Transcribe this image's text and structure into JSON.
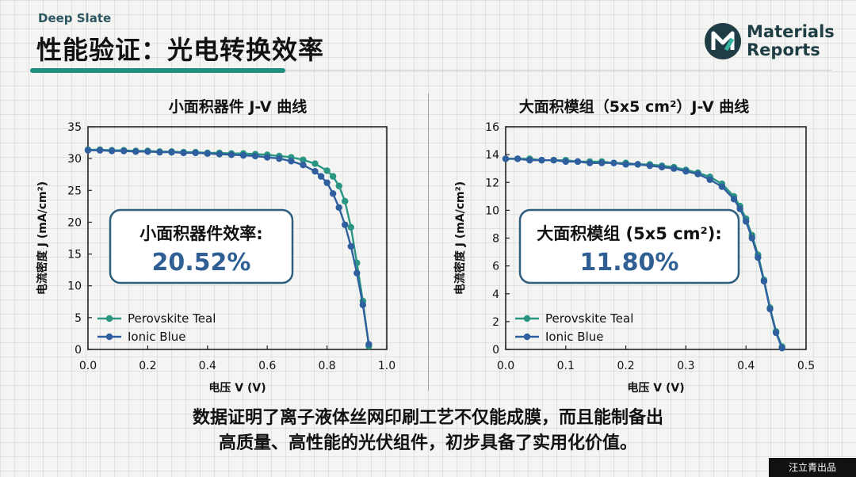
{
  "header": {
    "brand": "Deep Slate",
    "title": "性能验证：光电转换效率",
    "logo_line1": "Materials",
    "logo_line2": "Reports"
  },
  "caption": {
    "line1": "数据证明了离子液体丝网印刷工艺不仅能成膜，而且能制备出",
    "line2": "高质量、高性能的光伏组件，初步具备了实用化价值。"
  },
  "watermark": "汪立青出品",
  "colors": {
    "teal": "#2a9582",
    "blue": "#2f5f9e",
    "accent": "#1e8f80",
    "box_border": "#2f5e7e",
    "value_text": "#2f5f93"
  },
  "chart_data": [
    {
      "type": "line",
      "title": "小面积器件 J-V 曲线",
      "xlabel": "电压 V (V)",
      "ylabel": "电流密度 J (mA/cm²)",
      "xlim": [
        0.0,
        1.0
      ],
      "ylim": [
        0,
        35
      ],
      "xticks": [
        "0.0",
        "0.2",
        "0.4",
        "0.6",
        "0.8",
        "1.0"
      ],
      "yticks": [
        "0",
        "5",
        "10",
        "15",
        "20",
        "25",
        "30",
        "35"
      ],
      "grid": false,
      "legend": "bottom-left",
      "annotation": {
        "label": "小面积器件效率:",
        "value": "20.52%"
      },
      "series": [
        {
          "name": "Perovskite Teal",
          "color": "#2a9582",
          "x": [
            0.0,
            0.04,
            0.08,
            0.12,
            0.16,
            0.2,
            0.24,
            0.28,
            0.32,
            0.36,
            0.4,
            0.44,
            0.48,
            0.52,
            0.56,
            0.6,
            0.64,
            0.68,
            0.72,
            0.76,
            0.8,
            0.82,
            0.84,
            0.86,
            0.88,
            0.9,
            0.92,
            0.94
          ],
          "y": [
            31.4,
            31.4,
            31.3,
            31.3,
            31.2,
            31.2,
            31.1,
            31.1,
            31.0,
            31.0,
            30.9,
            30.9,
            30.8,
            30.8,
            30.7,
            30.6,
            30.4,
            30.2,
            29.8,
            29.2,
            28.1,
            27.2,
            25.7,
            23.3,
            19.2,
            13.6,
            7.6,
            0.5
          ]
        },
        {
          "name": "Ionic Blue",
          "color": "#2f5f9e",
          "x": [
            0.0,
            0.04,
            0.08,
            0.12,
            0.16,
            0.2,
            0.24,
            0.28,
            0.32,
            0.36,
            0.4,
            0.44,
            0.48,
            0.52,
            0.56,
            0.6,
            0.64,
            0.68,
            0.72,
            0.76,
            0.78,
            0.8,
            0.82,
            0.84,
            0.86,
            0.88,
            0.9,
            0.92,
            0.94
          ],
          "y": [
            31.3,
            31.3,
            31.2,
            31.2,
            31.1,
            31.1,
            31.0,
            31.0,
            30.9,
            30.9,
            30.8,
            30.7,
            30.6,
            30.5,
            30.4,
            30.2,
            30.0,
            29.6,
            29.0,
            28.0,
            27.2,
            26.2,
            24.5,
            22.3,
            19.6,
            16.2,
            12.0,
            7.0,
            0.8
          ]
        }
      ]
    },
    {
      "type": "line",
      "title": "大面积模组（5x5 cm²）J-V 曲线",
      "xlabel": "电压 V (V)",
      "ylabel": "电流密度 J (mA/cm²)",
      "xlim": [
        0.0,
        0.5
      ],
      "ylim": [
        0,
        16
      ],
      "xticks": [
        "0.0",
        "0.1",
        "0.2",
        "0.3",
        "0.4",
        "0.5"
      ],
      "yticks": [
        "0",
        "2",
        "4",
        "6",
        "8",
        "10",
        "12",
        "14",
        "16"
      ],
      "grid": false,
      "legend": "bottom-left",
      "annotation": {
        "label": "大面积模组 (5x5 cm²):",
        "value": "11.80%"
      },
      "series": [
        {
          "name": "Perovskite Teal",
          "color": "#2a9582",
          "x": [
            0.0,
            0.02,
            0.04,
            0.06,
            0.08,
            0.1,
            0.12,
            0.14,
            0.16,
            0.18,
            0.2,
            0.22,
            0.24,
            0.26,
            0.28,
            0.3,
            0.32,
            0.34,
            0.36,
            0.38,
            0.39,
            0.4,
            0.41,
            0.42,
            0.43,
            0.44,
            0.45,
            0.46
          ],
          "y": [
            13.7,
            13.7,
            13.7,
            13.6,
            13.6,
            13.6,
            13.5,
            13.5,
            13.5,
            13.4,
            13.4,
            13.3,
            13.3,
            13.2,
            13.1,
            12.9,
            12.7,
            12.4,
            11.9,
            11.0,
            10.3,
            9.4,
            8.2,
            6.8,
            5.0,
            3.0,
            1.3,
            0.2
          ]
        },
        {
          "name": "Ionic Blue",
          "color": "#2f5f9e",
          "x": [
            0.0,
            0.02,
            0.04,
            0.06,
            0.08,
            0.1,
            0.12,
            0.14,
            0.16,
            0.18,
            0.2,
            0.22,
            0.24,
            0.26,
            0.28,
            0.3,
            0.32,
            0.34,
            0.36,
            0.38,
            0.39,
            0.4,
            0.41,
            0.42,
            0.43,
            0.44,
            0.45,
            0.46
          ],
          "y": [
            13.7,
            13.7,
            13.6,
            13.6,
            13.6,
            13.5,
            13.5,
            13.4,
            13.4,
            13.4,
            13.3,
            13.3,
            13.2,
            13.1,
            13.0,
            12.8,
            12.6,
            12.2,
            11.7,
            10.8,
            10.1,
            9.2,
            8.0,
            6.6,
            4.9,
            2.9,
            1.2,
            0.1
          ]
        }
      ]
    }
  ]
}
